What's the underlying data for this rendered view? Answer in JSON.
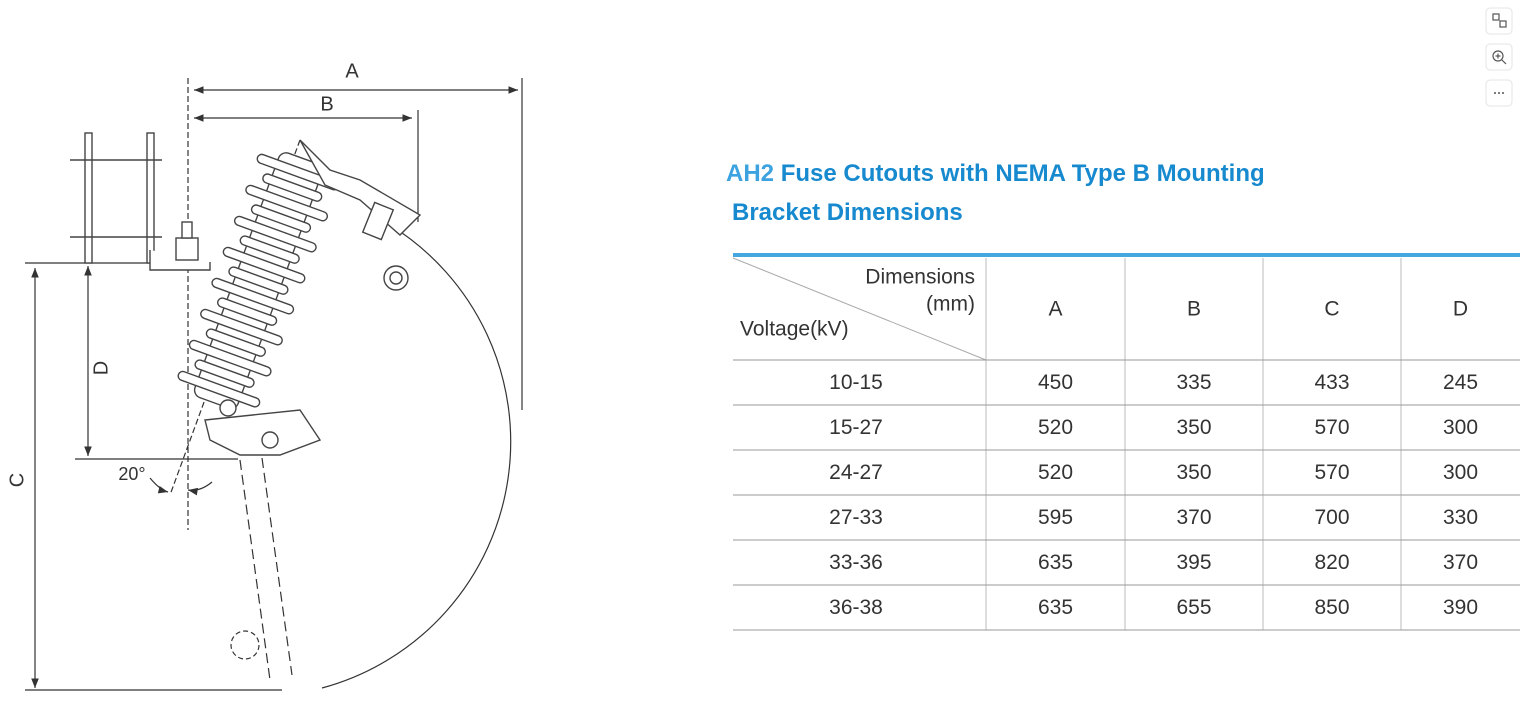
{
  "drawing": {
    "label_a": "A",
    "label_b": "B",
    "label_c": "C",
    "label_d": "D",
    "angle": "20°"
  },
  "title": {
    "model": "AH2",
    "line1": "Fuse Cutouts with NEMA Type B Mounting",
    "line2": "Bracket Dimensions"
  },
  "table": {
    "corner": {
      "dimensions": "Dimensions",
      "unit": "(mm)",
      "voltage": "Voltage(kV)"
    },
    "columns": [
      "A",
      "B",
      "C",
      "D"
    ],
    "rows": [
      [
        "10-15",
        450,
        335,
        433,
        245
      ],
      [
        "15-27",
        520,
        350,
        570,
        300
      ],
      [
        "24-27",
        520,
        350,
        570,
        300
      ],
      [
        "27-33",
        595,
        370,
        700,
        330
      ],
      [
        "33-36",
        635,
        395,
        820,
        370
      ],
      [
        "36-38",
        635,
        655,
        850,
        390
      ]
    ]
  }
}
